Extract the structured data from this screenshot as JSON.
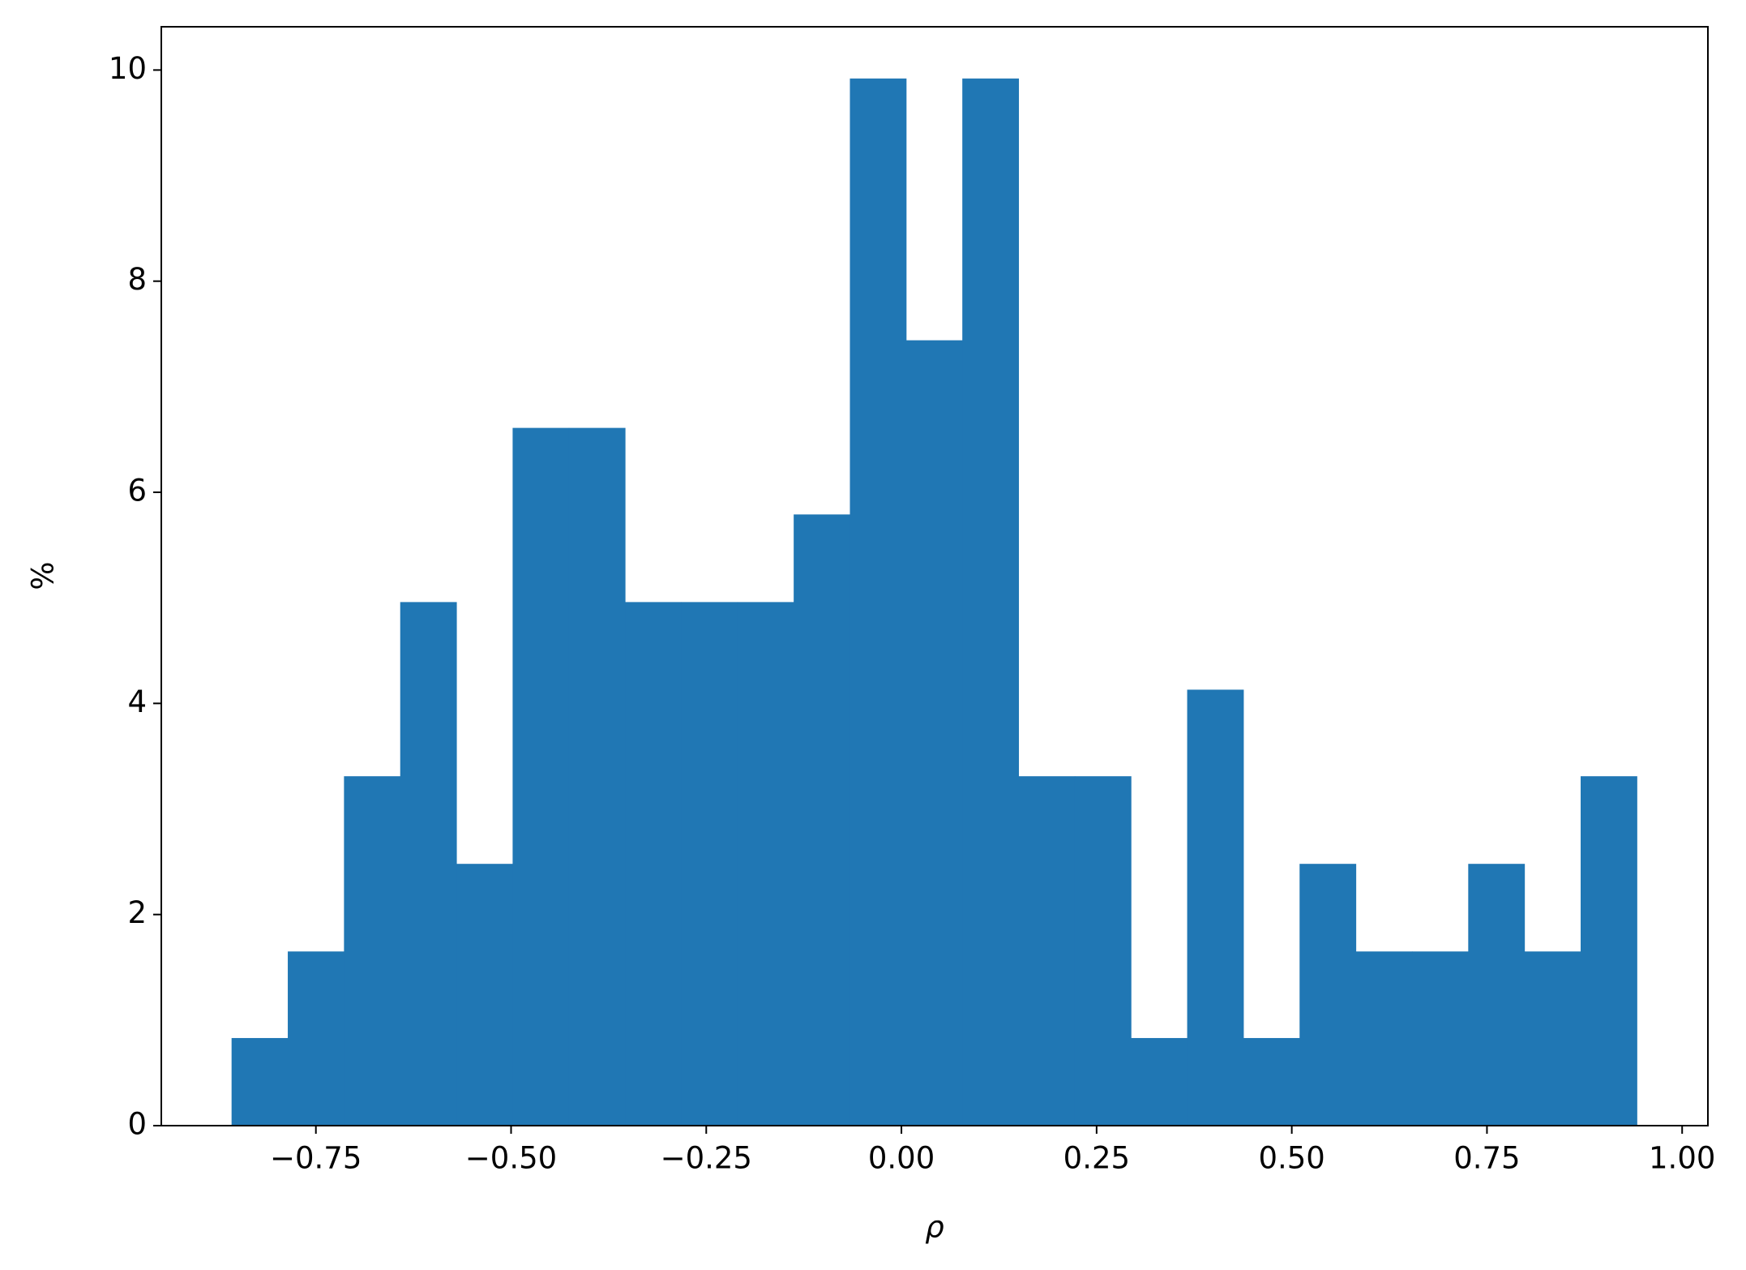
{
  "chart_data": {
    "type": "histogram",
    "x_label": "ρ",
    "y_label": "%",
    "bins": [
      -0.858,
      -0.786,
      -0.714,
      -0.642,
      -0.57,
      -0.498,
      -0.426,
      -0.354,
      -0.282,
      -0.21,
      -0.138,
      -0.066,
      0.006,
      0.078,
      0.15,
      0.222,
      0.294,
      0.366,
      0.438,
      0.51,
      0.582,
      0.654,
      0.726,
      0.798,
      0.87,
      0.942
    ],
    "values": [
      0.83,
      1.65,
      3.31,
      4.96,
      2.48,
      6.61,
      6.61,
      4.96,
      4.96,
      4.96,
      5.79,
      9.92,
      7.44,
      9.92,
      3.31,
      3.31,
      0.83,
      4.13,
      0.83,
      2.48,
      1.65,
      1.65,
      2.48,
      1.65,
      3.31
    ],
    "color": "#2077b4",
    "xlim": [
      -0.948,
      1.033
    ],
    "ylim": [
      0,
      10.41
    ],
    "xticks": [
      {
        "value": -0.75,
        "label": "−0.75"
      },
      {
        "value": -0.5,
        "label": "−0.50"
      },
      {
        "value": -0.25,
        "label": "−0.25"
      },
      {
        "value": 0,
        "label": "0.00"
      },
      {
        "value": 0.25,
        "label": "0.25"
      },
      {
        "value": 0.5,
        "label": "0.50"
      },
      {
        "value": 0.75,
        "label": "0.75"
      },
      {
        "value": 1,
        "label": "1.00"
      }
    ],
    "yticks": [
      0,
      2,
      4,
      6,
      8,
      10
    ],
    "grid": false
  }
}
